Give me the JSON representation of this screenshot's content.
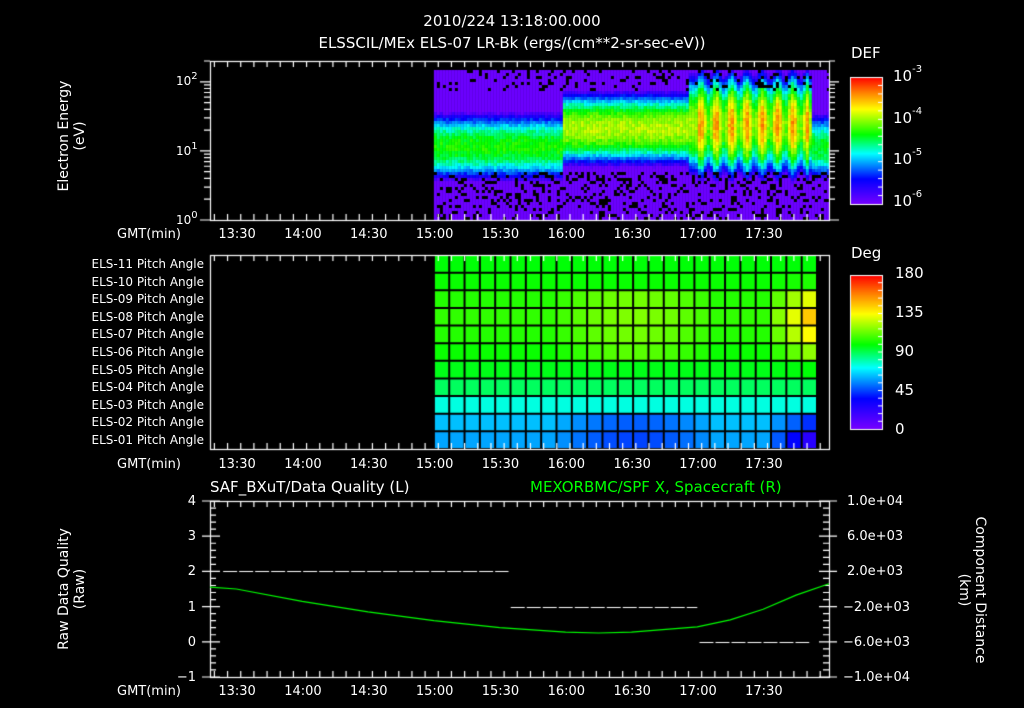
{
  "header": {
    "timestamp": "2010/224 13:18:00.000",
    "subtitle": "ELSSCIL/MEx ELS-07 LR-Bk  (ergs/(cm**2-sr-sec-eV))"
  },
  "time_axis": {
    "label": "GMT(min)",
    "ticks": [
      "13:30",
      "14:00",
      "14:30",
      "15:00",
      "15:30",
      "16:00",
      "16:30",
      "17:00",
      "17:30"
    ],
    "start_minutes": 798,
    "end_minutes": 1080
  },
  "panel1": {
    "ylabel_line1": "Electron Energy",
    "ylabel_line2": "(eV)",
    "yticks": [
      {
        "base": "10",
        "exp": "2"
      },
      {
        "base": "10",
        "exp": "1"
      },
      {
        "base": "10",
        "exp": "0"
      }
    ],
    "colorbar_title": "DEF",
    "colorbar_ticks": [
      {
        "base": "10",
        "exp": "-3"
      },
      {
        "base": "10",
        "exp": "-4"
      },
      {
        "base": "10",
        "exp": "-5"
      },
      {
        "base": "10",
        "exp": "-6"
      }
    ]
  },
  "panel2": {
    "row_labels": [
      "ELS-11 Pitch Angle",
      "ELS-10 Pitch Angle",
      "ELS-09 Pitch Angle",
      "ELS-08 Pitch Angle",
      "ELS-07 Pitch Angle",
      "ELS-06 Pitch Angle",
      "ELS-05 Pitch Angle",
      "ELS-04 Pitch Angle",
      "ELS-03 Pitch Angle",
      "ELS-02 Pitch Angle",
      "ELS-01 Pitch Angle"
    ],
    "colorbar_title": "Deg",
    "colorbar_ticks": [
      "180",
      "135",
      "90",
      "45",
      "0"
    ]
  },
  "panel3": {
    "left_title": "SAF_BXuT/Data Quality (L)",
    "right_title": "MEXORBMC/SPF X, Spacecraft (R)",
    "ylabel_left_line1": "Raw Data Quality",
    "ylabel_left_line2": "(Raw)",
    "ylabel_right_line1": "Component Distance",
    "ylabel_right_line2": "(km)",
    "yticks_left": [
      "4",
      "3",
      "2",
      "1",
      "0",
      "−1"
    ],
    "yticks_right": [
      "1.0e+04",
      "6.0e+03",
      "2.0e+03",
      "−2.0e+03",
      "−6.0e+03",
      "−1.0e+04"
    ]
  },
  "colors": {
    "background": "#000000",
    "axis": "#ffffff",
    "orbit_line": "#00ff00"
  },
  "chart_data": [
    {
      "type": "heatmap",
      "title": "ELSSCIL/MEx ELS-07 LR-Bk (ergs/(cm**2-sr-sec-eV))",
      "xlabel": "GMT(min)",
      "ylabel": "Electron Energy (eV)",
      "yscale": "log",
      "ylim": [
        1,
        200
      ],
      "xlim": [
        "13:18",
        "18:00"
      ],
      "data_start": "15:00",
      "colorbar": {
        "label": "DEF",
        "scale": "log",
        "range": [
          1e-06,
          0.001
        ]
      },
      "bands": [
        {
          "start": "15:00",
          "end": "15:58",
          "peak_energy_eV": 12,
          "peak_DEF": 5e-05
        },
        {
          "start": "15:58",
          "end": "16:55",
          "peak_energy_eV": 22,
          "peak_DEF": 0.00012
        },
        {
          "start": "16:55",
          "end": "17:52",
          "peak_energy_eV": 25,
          "peak_DEF": 0.00012
        },
        {
          "start": "17:52",
          "end": "18:00",
          "peak_energy_eV": 12,
          "peak_DEF": 4e-05
        }
      ]
    },
    {
      "type": "heatmap",
      "title": "ELS Pitch Angle",
      "xlabel": "GMT(min)",
      "rows": [
        "ELS-11",
        "ELS-10",
        "ELS-09",
        "ELS-08",
        "ELS-07",
        "ELS-06",
        "ELS-05",
        "ELS-04",
        "ELS-03",
        "ELS-02",
        "ELS-01"
      ],
      "xlim": [
        "13:18",
        "18:00"
      ],
      "data_start": "15:00",
      "data_end": "17:55",
      "columns": 25,
      "colorbar": {
        "label": "Deg",
        "range": [
          0,
          180
        ]
      },
      "row_baseline_deg": [
        100,
        102,
        106,
        108,
        106,
        102,
        98,
        90,
        75,
        62,
        58
      ],
      "late_peak_deg": [
        100,
        105,
        135,
        150,
        140,
        122,
        100,
        90,
        75,
        40,
        20
      ]
    },
    {
      "type": "line",
      "title": "SAF_BXuT/Data Quality (L) / MEXORBMC/SPF X, Spacecraft (R)",
      "xlabel": "GMT(min)",
      "ylabel": "Raw Data Quality (Raw)",
      "ylabel_right": "Component Distance (km)",
      "ylim": [
        -1,
        4
      ],
      "ylim_right": [
        -10000,
        10000
      ],
      "series": [
        {
          "name": "Data Quality",
          "axis": "left",
          "style": "dashed",
          "color": "#ffffff",
          "segments": [
            {
              "start": "13:24",
              "end": "15:34",
              "value": 2
            },
            {
              "start": "15:35",
              "end": "17:00",
              "value": 1
            },
            {
              "start": "17:01",
              "end": "17:51",
              "value": 0
            }
          ]
        },
        {
          "name": "SPF X, Spacecraft",
          "axis": "right",
          "color": "#00ff00",
          "x": [
            "13:18",
            "13:30",
            "14:00",
            "14:30",
            "15:00",
            "15:30",
            "16:00",
            "16:15",
            "16:30",
            "17:00",
            "17:15",
            "17:30",
            "17:45",
            "18:00"
          ],
          "values": [
            220,
            0,
            -1400,
            -2600,
            -3600,
            -4400,
            -4900,
            -5000,
            -4900,
            -4300,
            -3500,
            -2300,
            -700,
            600
          ]
        }
      ]
    }
  ]
}
